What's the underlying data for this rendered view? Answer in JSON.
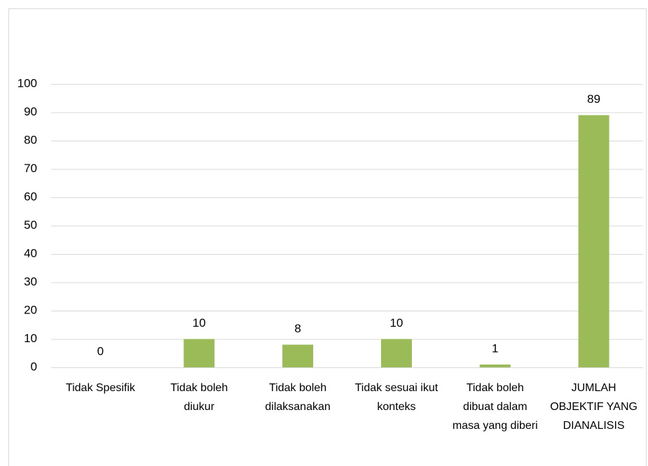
{
  "chart_data": {
    "type": "bar",
    "categories": [
      "Tidak Spesifik",
      "Tidak boleh diukur",
      "Tidak boleh dilaksanakan",
      "Tidak sesuai ikut konteks",
      "Tidak boleh dibuat dalam masa yang diberi",
      "JUMLAH OBJEKTIF YANG DIANALISIS"
    ],
    "values": [
      0,
      10,
      8,
      10,
      1,
      89
    ],
    "color": "#9bbb59",
    "ylim": [
      0,
      100
    ],
    "yticks": [
      0,
      10,
      20,
      30,
      40,
      50,
      60,
      70,
      80,
      90,
      100
    ],
    "grid": true
  }
}
